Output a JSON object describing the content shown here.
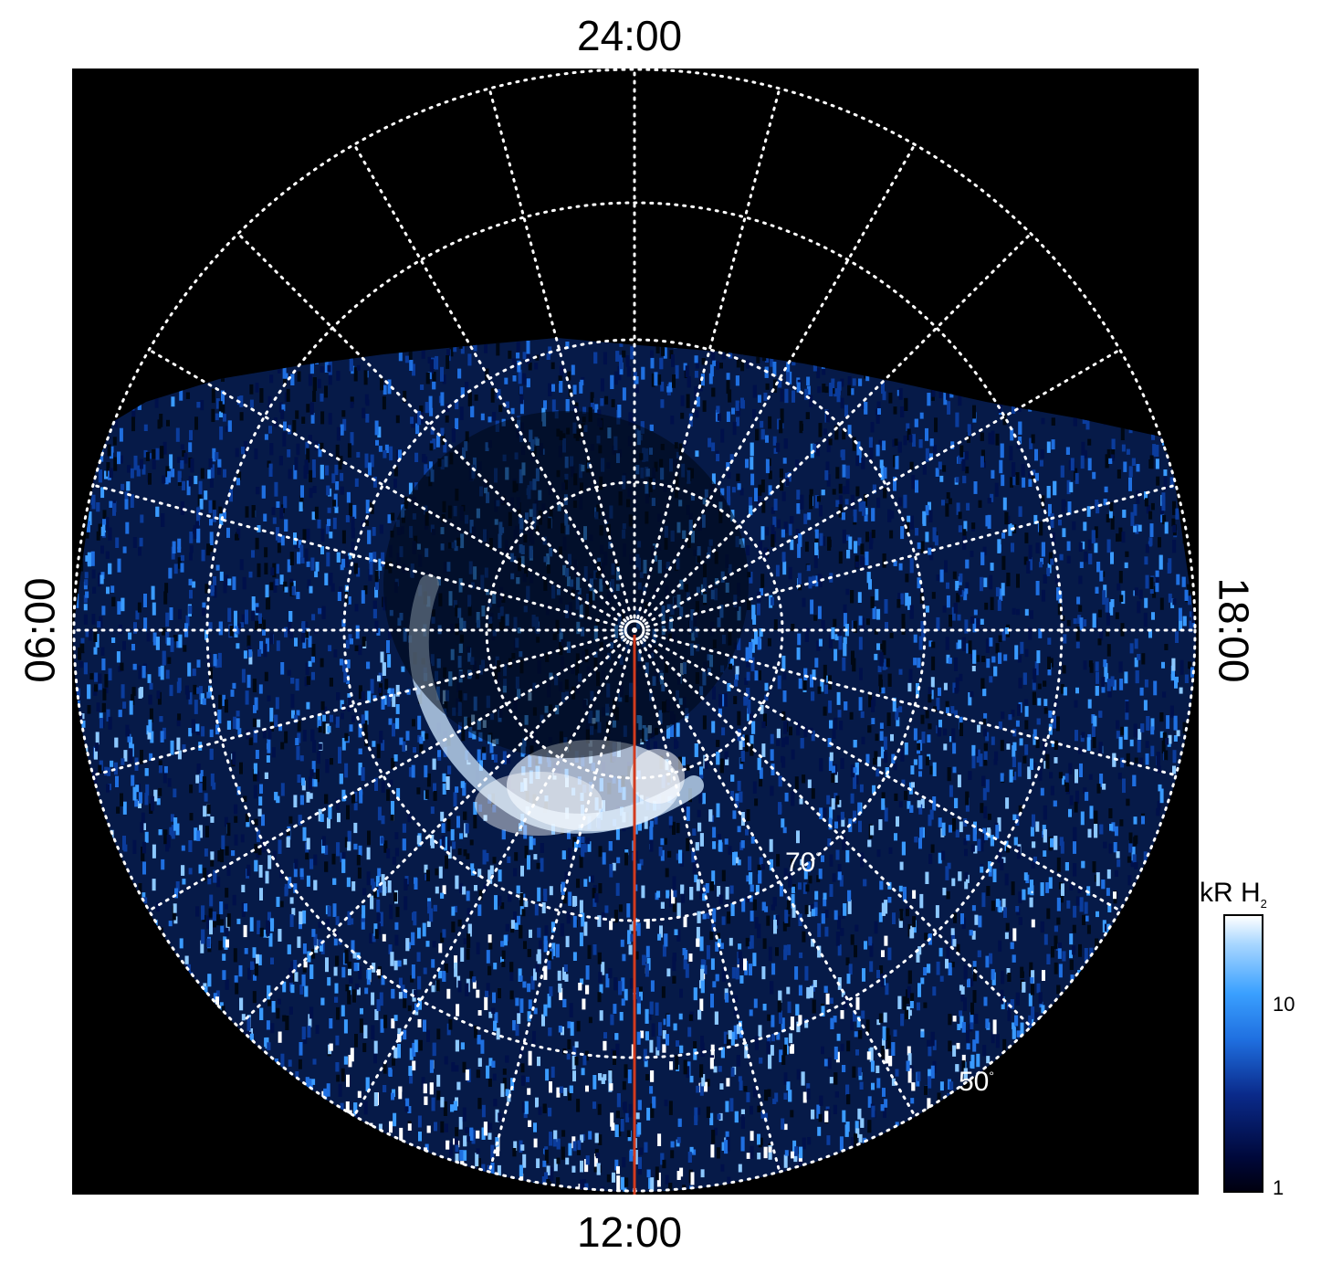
{
  "labels": {
    "top": "24:00",
    "bottom": "12:00",
    "left": "06:00",
    "right": "18:00"
  },
  "latitudes": {
    "lat70": "70",
    "lat50": "50",
    "degree": "°"
  },
  "colorbar": {
    "title_main": "kR H",
    "title_sub": "2",
    "ticks": [
      "10",
      "1"
    ],
    "scale": "log",
    "range": [
      1,
      30
    ]
  },
  "colors": {
    "background": "#000000",
    "emission_dark": "#00083a",
    "emission_mid": "#1f6fe0",
    "emission_bright": "#ffffff",
    "meridian_line": "#d23b1e",
    "grid": "#ffffff"
  }
}
